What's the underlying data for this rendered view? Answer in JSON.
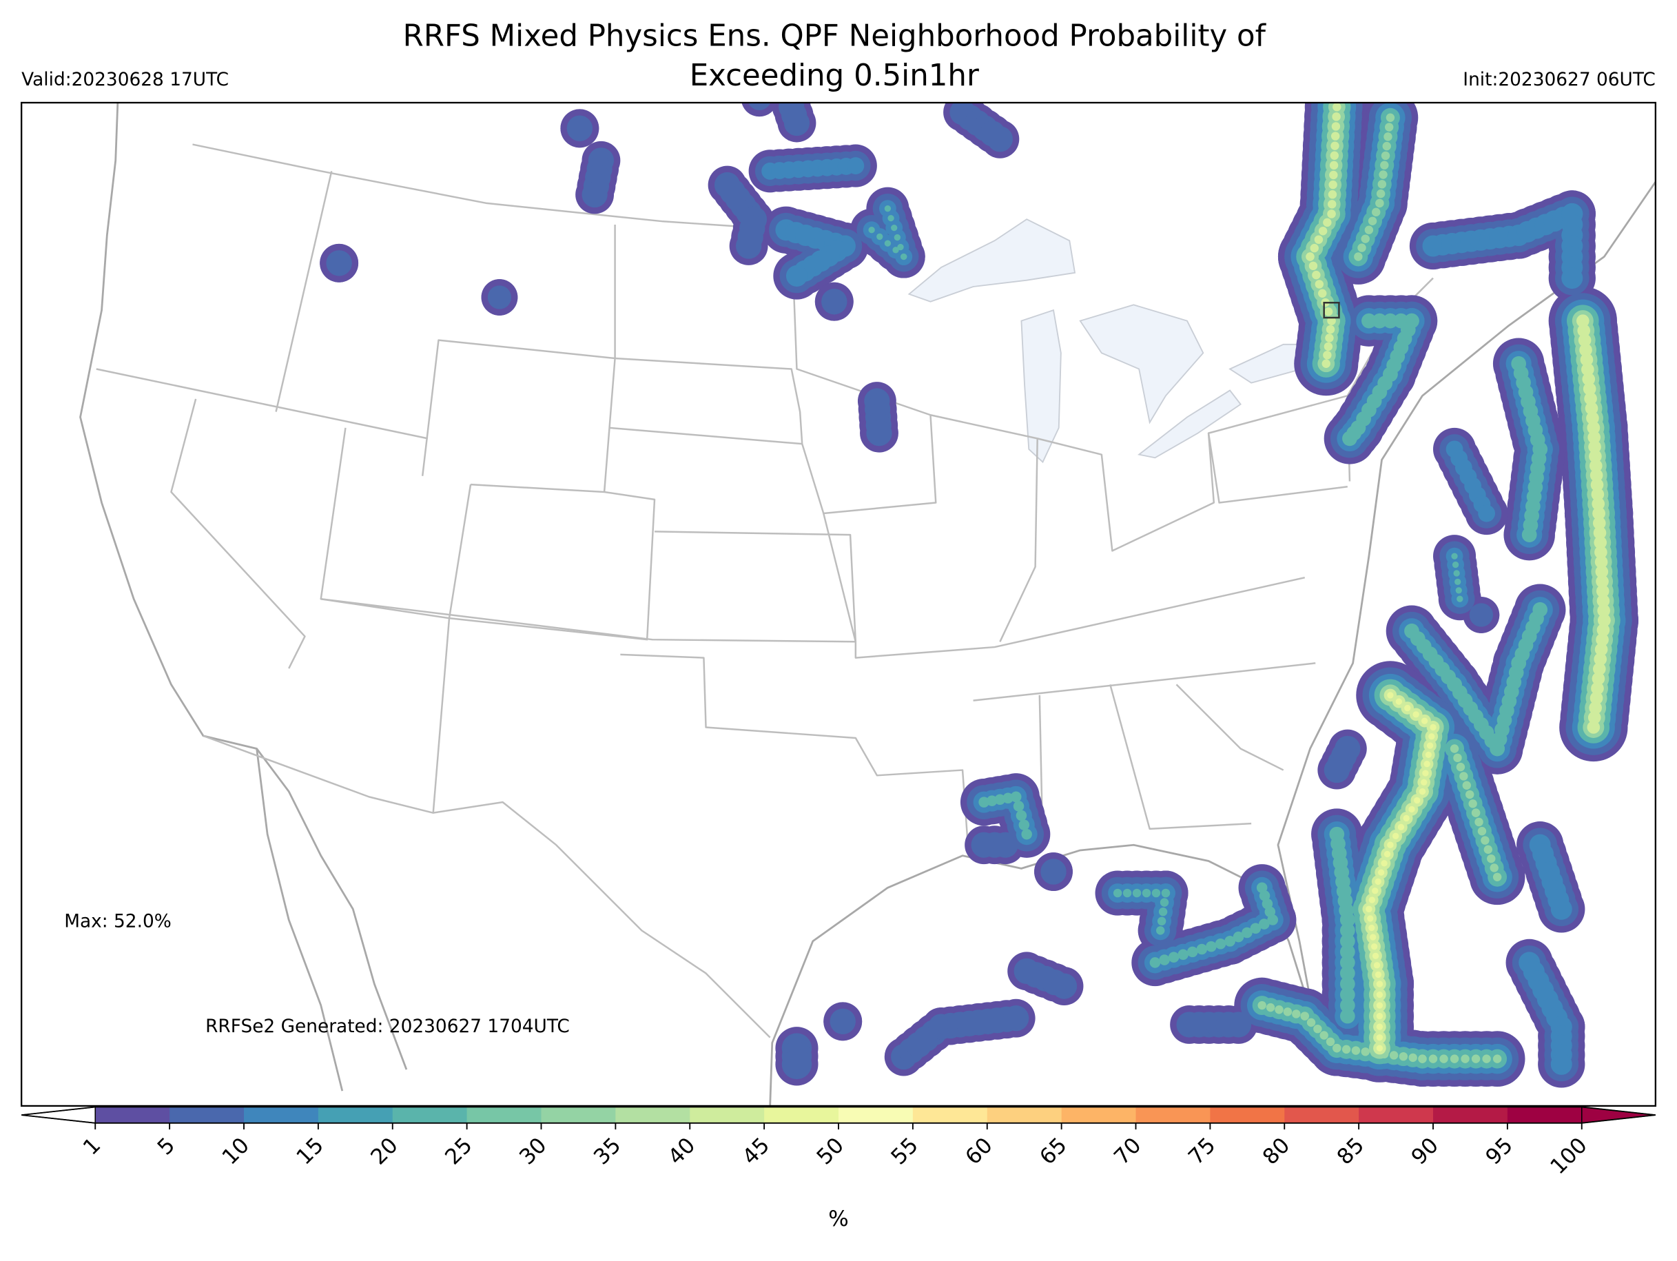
{
  "title": [
    "RRFS Mixed Physics Ens. QPF Neighborhood Probability of",
    "Exceeding 0.5in1hr"
  ],
  "valid": "Valid:20230628 17UTC",
  "init": "Init:20230627 06UTC",
  "max_label": "Max: 52.0%",
  "generated": "RRFSe2 Generated: 20230627 1704UTC",
  "colorbar": {
    "ticks": [
      1,
      5,
      10,
      15,
      20,
      25,
      30,
      35,
      40,
      45,
      50,
      55,
      60,
      65,
      70,
      75,
      80,
      85,
      90,
      95,
      100
    ],
    "colors": [
      "#5e4fa2",
      "#4a68ad",
      "#3f86bc",
      "#45a0b4",
      "#5ab4ab",
      "#77c6a6",
      "#94d3a4",
      "#b3e0a2",
      "#cfec9d",
      "#e8f69c",
      "#f8fcb4",
      "#fee796",
      "#fdd07f",
      "#fdb466",
      "#f99555",
      "#f17446",
      "#e2574c",
      "#cf384d",
      "#b41a46",
      "#9e0142"
    ],
    "under_color": "#ffffff",
    "over_color": "#9e0142",
    "label": "%"
  }
}
